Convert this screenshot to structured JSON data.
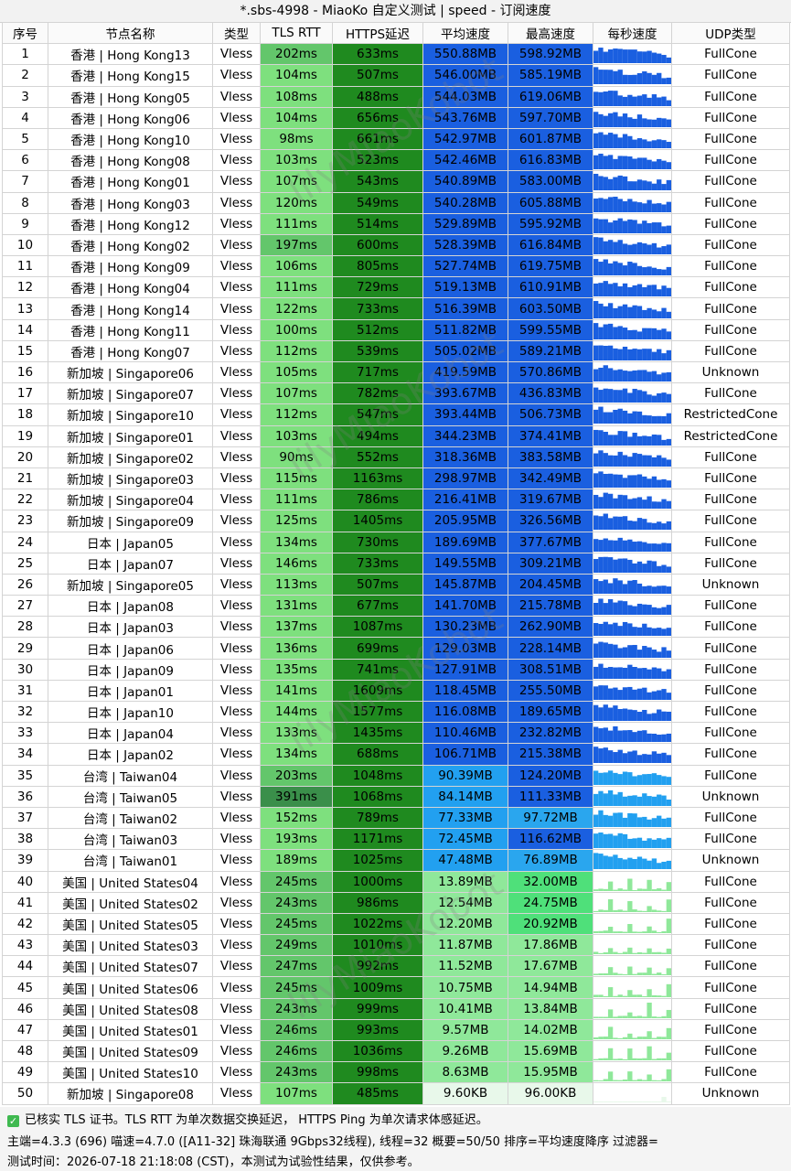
{
  "title": "*.sbs-4998 - MiaoKo 自定义测试 | speed - 订阅速度",
  "columns": [
    "序号",
    "节点名称",
    "类型",
    "TLS RTT",
    "HTTPS延迟",
    "平均速度",
    "最高速度",
    "每秒速度",
    "UDP类型"
  ],
  "rows": [
    {
      "idx": "1",
      "name": "香港 | Hong Kong13",
      "type": "Vless",
      "tls": "202ms",
      "https": "633ms",
      "avg": "550.88MB",
      "max": "598.92MB",
      "udp": "FullCone"
    },
    {
      "idx": "2",
      "name": "香港 | Hong Kong15",
      "type": "Vless",
      "tls": "104ms",
      "https": "507ms",
      "avg": "546.00MB",
      "max": "585.19MB",
      "udp": "FullCone"
    },
    {
      "idx": "3",
      "name": "香港 | Hong Kong05",
      "type": "Vless",
      "tls": "108ms",
      "https": "488ms",
      "avg": "544.03MB",
      "max": "619.06MB",
      "udp": "FullCone"
    },
    {
      "idx": "4",
      "name": "香港 | Hong Kong06",
      "type": "Vless",
      "tls": "104ms",
      "https": "656ms",
      "avg": "543.76MB",
      "max": "597.70MB",
      "udp": "FullCone"
    },
    {
      "idx": "5",
      "name": "香港 | Hong Kong10",
      "type": "Vless",
      "tls": "98ms",
      "https": "661ms",
      "avg": "542.97MB",
      "max": "601.87MB",
      "udp": "FullCone"
    },
    {
      "idx": "6",
      "name": "香港 | Hong Kong08",
      "type": "Vless",
      "tls": "103ms",
      "https": "523ms",
      "avg": "542.46MB",
      "max": "616.83MB",
      "udp": "FullCone"
    },
    {
      "idx": "7",
      "name": "香港 | Hong Kong01",
      "type": "Vless",
      "tls": "107ms",
      "https": "543ms",
      "avg": "540.89MB",
      "max": "583.00MB",
      "udp": "FullCone"
    },
    {
      "idx": "8",
      "name": "香港 | Hong Kong03",
      "type": "Vless",
      "tls": "120ms",
      "https": "549ms",
      "avg": "540.28MB",
      "max": "605.88MB",
      "udp": "FullCone"
    },
    {
      "idx": "9",
      "name": "香港 | Hong Kong12",
      "type": "Vless",
      "tls": "111ms",
      "https": "514ms",
      "avg": "529.89MB",
      "max": "595.92MB",
      "udp": "FullCone"
    },
    {
      "idx": "10",
      "name": "香港 | Hong Kong02",
      "type": "Vless",
      "tls": "197ms",
      "https": "600ms",
      "avg": "528.39MB",
      "max": "616.84MB",
      "udp": "FullCone"
    },
    {
      "idx": "11",
      "name": "香港 | Hong Kong09",
      "type": "Vless",
      "tls": "106ms",
      "https": "805ms",
      "avg": "527.74MB",
      "max": "619.75MB",
      "udp": "FullCone"
    },
    {
      "idx": "12",
      "name": "香港 | Hong Kong04",
      "type": "Vless",
      "tls": "111ms",
      "https": "729ms",
      "avg": "519.13MB",
      "max": "610.91MB",
      "udp": "FullCone"
    },
    {
      "idx": "13",
      "name": "香港 | Hong Kong14",
      "type": "Vless",
      "tls": "122ms",
      "https": "733ms",
      "avg": "516.39MB",
      "max": "603.50MB",
      "udp": "FullCone"
    },
    {
      "idx": "14",
      "name": "香港 | Hong Kong11",
      "type": "Vless",
      "tls": "100ms",
      "https": "512ms",
      "avg": "511.82MB",
      "max": "599.55MB",
      "udp": "FullCone"
    },
    {
      "idx": "15",
      "name": "香港 | Hong Kong07",
      "type": "Vless",
      "tls": "112ms",
      "https": "539ms",
      "avg": "505.02MB",
      "max": "589.21MB",
      "udp": "FullCone"
    },
    {
      "idx": "16",
      "name": "新加坡 | Singapore06",
      "type": "Vless",
      "tls": "105ms",
      "https": "717ms",
      "avg": "419.59MB",
      "max": "570.86MB",
      "udp": "Unknown"
    },
    {
      "idx": "17",
      "name": "新加坡 | Singapore07",
      "type": "Vless",
      "tls": "107ms",
      "https": "782ms",
      "avg": "393.67MB",
      "max": "436.83MB",
      "udp": "FullCone"
    },
    {
      "idx": "18",
      "name": "新加坡 | Singapore10",
      "type": "Vless",
      "tls": "112ms",
      "https": "547ms",
      "avg": "393.44MB",
      "max": "506.73MB",
      "udp": "RestrictedCone"
    },
    {
      "idx": "19",
      "name": "新加坡 | Singapore01",
      "type": "Vless",
      "tls": "103ms",
      "https": "494ms",
      "avg": "344.23MB",
      "max": "374.41MB",
      "udp": "RestrictedCone"
    },
    {
      "idx": "20",
      "name": "新加坡 | Singapore02",
      "type": "Vless",
      "tls": "90ms",
      "https": "552ms",
      "avg": "318.36MB",
      "max": "383.58MB",
      "udp": "FullCone"
    },
    {
      "idx": "21",
      "name": "新加坡 | Singapore03",
      "type": "Vless",
      "tls": "115ms",
      "https": "1163ms",
      "avg": "298.97MB",
      "max": "342.49MB",
      "udp": "FullCone"
    },
    {
      "idx": "22",
      "name": "新加坡 | Singapore04",
      "type": "Vless",
      "tls": "111ms",
      "https": "786ms",
      "avg": "216.41MB",
      "max": "319.67MB",
      "udp": "FullCone"
    },
    {
      "idx": "23",
      "name": "新加坡 | Singapore09",
      "type": "Vless",
      "tls": "125ms",
      "https": "1405ms",
      "avg": "205.95MB",
      "max": "326.56MB",
      "udp": "FullCone"
    },
    {
      "idx": "24",
      "name": "日本 | Japan05",
      "type": "Vless",
      "tls": "134ms",
      "https": "730ms",
      "avg": "189.69MB",
      "max": "377.67MB",
      "udp": "FullCone"
    },
    {
      "idx": "25",
      "name": "日本 | Japan07",
      "type": "Vless",
      "tls": "146ms",
      "https": "733ms",
      "avg": "149.55MB",
      "max": "309.21MB",
      "udp": "FullCone"
    },
    {
      "idx": "26",
      "name": "新加坡 | Singapore05",
      "type": "Vless",
      "tls": "113ms",
      "https": "507ms",
      "avg": "145.87MB",
      "max": "204.45MB",
      "udp": "Unknown"
    },
    {
      "idx": "27",
      "name": "日本 | Japan08",
      "type": "Vless",
      "tls": "131ms",
      "https": "677ms",
      "avg": "141.70MB",
      "max": "215.78MB",
      "udp": "FullCone"
    },
    {
      "idx": "28",
      "name": "日本 | Japan03",
      "type": "Vless",
      "tls": "137ms",
      "https": "1087ms",
      "avg": "130.23MB",
      "max": "262.90MB",
      "udp": "FullCone"
    },
    {
      "idx": "29",
      "name": "日本 | Japan06",
      "type": "Vless",
      "tls": "136ms",
      "https": "699ms",
      "avg": "129.03MB",
      "max": "228.14MB",
      "udp": "FullCone"
    },
    {
      "idx": "30",
      "name": "日本 | Japan09",
      "type": "Vless",
      "tls": "135ms",
      "https": "741ms",
      "avg": "127.91MB",
      "max": "308.51MB",
      "udp": "FullCone"
    },
    {
      "idx": "31",
      "name": "日本 | Japan01",
      "type": "Vless",
      "tls": "141ms",
      "https": "1609ms",
      "avg": "118.45MB",
      "max": "255.50MB",
      "udp": "FullCone"
    },
    {
      "idx": "32",
      "name": "日本 | Japan10",
      "type": "Vless",
      "tls": "144ms",
      "https": "1577ms",
      "avg": "116.08MB",
      "max": "189.65MB",
      "udp": "FullCone"
    },
    {
      "idx": "33",
      "name": "日本 | Japan04",
      "type": "Vless",
      "tls": "133ms",
      "https": "1435ms",
      "avg": "110.46MB",
      "max": "232.82MB",
      "udp": "FullCone"
    },
    {
      "idx": "34",
      "name": "日本 | Japan02",
      "type": "Vless",
      "tls": "134ms",
      "https": "688ms",
      "avg": "106.71MB",
      "max": "215.38MB",
      "udp": "FullCone"
    },
    {
      "idx": "35",
      "name": "台湾 | Taiwan04",
      "type": "Vless",
      "tls": "203ms",
      "https": "1048ms",
      "avg": "90.39MB",
      "max": "124.20MB",
      "udp": "FullCone"
    },
    {
      "idx": "36",
      "name": "台湾 | Taiwan05",
      "type": "Vless",
      "tls": "391ms",
      "https": "1068ms",
      "avg": "84.14MB",
      "max": "111.33MB",
      "udp": "Unknown"
    },
    {
      "idx": "37",
      "name": "台湾 | Taiwan02",
      "type": "Vless",
      "tls": "152ms",
      "https": "789ms",
      "avg": "77.33MB",
      "max": "97.72MB",
      "udp": "FullCone"
    },
    {
      "idx": "38",
      "name": "台湾 | Taiwan03",
      "type": "Vless",
      "tls": "193ms",
      "https": "1171ms",
      "avg": "72.45MB",
      "max": "116.62MB",
      "udp": "FullCone"
    },
    {
      "idx": "39",
      "name": "台湾 | Taiwan01",
      "type": "Vless",
      "tls": "189ms",
      "https": "1025ms",
      "avg": "47.48MB",
      "max": "76.89MB",
      "udp": "Unknown"
    },
    {
      "idx": "40",
      "name": "美国 | United States04",
      "type": "Vless",
      "tls": "245ms",
      "https": "1000ms",
      "avg": "13.89MB",
      "max": "32.00MB",
      "udp": "FullCone"
    },
    {
      "idx": "41",
      "name": "美国 | United States02",
      "type": "Vless",
      "tls": "243ms",
      "https": "986ms",
      "avg": "12.54MB",
      "max": "24.75MB",
      "udp": "FullCone"
    },
    {
      "idx": "42",
      "name": "美国 | United States05",
      "type": "Vless",
      "tls": "245ms",
      "https": "1022ms",
      "avg": "12.20MB",
      "max": "20.92MB",
      "udp": "FullCone"
    },
    {
      "idx": "43",
      "name": "美国 | United States03",
      "type": "Vless",
      "tls": "249ms",
      "https": "1010ms",
      "avg": "11.87MB",
      "max": "17.86MB",
      "udp": "FullCone"
    },
    {
      "idx": "44",
      "name": "美国 | United States07",
      "type": "Vless",
      "tls": "247ms",
      "https": "992ms",
      "avg": "11.52MB",
      "max": "17.67MB",
      "udp": "FullCone"
    },
    {
      "idx": "45",
      "name": "美国 | United States06",
      "type": "Vless",
      "tls": "245ms",
      "https": "1009ms",
      "avg": "10.75MB",
      "max": "14.94MB",
      "udp": "FullCone"
    },
    {
      "idx": "46",
      "name": "美国 | United States08",
      "type": "Vless",
      "tls": "243ms",
      "https": "999ms",
      "avg": "10.41MB",
      "max": "13.84MB",
      "udp": "FullCone"
    },
    {
      "idx": "47",
      "name": "美国 | United States01",
      "type": "Vless",
      "tls": "246ms",
      "https": "993ms",
      "avg": "9.57MB",
      "max": "14.02MB",
      "udp": "FullCone"
    },
    {
      "idx": "48",
      "name": "美国 | United States09",
      "type": "Vless",
      "tls": "246ms",
      "https": "1036ms",
      "avg": "9.26MB",
      "max": "15.69MB",
      "udp": "FullCone"
    },
    {
      "idx": "49",
      "name": "美国 | United States10",
      "type": "Vless",
      "tls": "243ms",
      "https": "998ms",
      "avg": "8.63MB",
      "max": "15.95MB",
      "udp": "FullCone"
    },
    {
      "idx": "50",
      "name": "新加坡 | Singapore08",
      "type": "Vless",
      "tls": "107ms",
      "https": "485ms",
      "avg": "9.60KB",
      "max": "96.00KB",
      "udp": "Unknown"
    }
  ],
  "footer": {
    "line1": "已核实 TLS 证书。TLS RTT 为单次数据交换延迟， HTTPS Ping 为单次请求体感延迟。",
    "line2": "主端=4.3.3 (696) 喵速=4.7.0 ([A11-32] 珠海联通 9Gbps32线程), 线程=32 概要=50/50 排序=平均速度降序 过滤器=",
    "line3": "测试时间：2026-07-18 21:18:08 (CST)，本测试为试验性结果，仅供参考。"
  },
  "watermark": "lilyMiaoKobot",
  "colors": {
    "tls_green": "#7ee07e",
    "tls_dark": "#3a9a3a",
    "https_green": "#1f8a1f",
    "speed_blue_dark": "#1a5fe0",
    "speed_cyan": "#22c4f0",
    "speed_green_light": "#8fe89a",
    "speed_pale": "#e8f8ea"
  }
}
